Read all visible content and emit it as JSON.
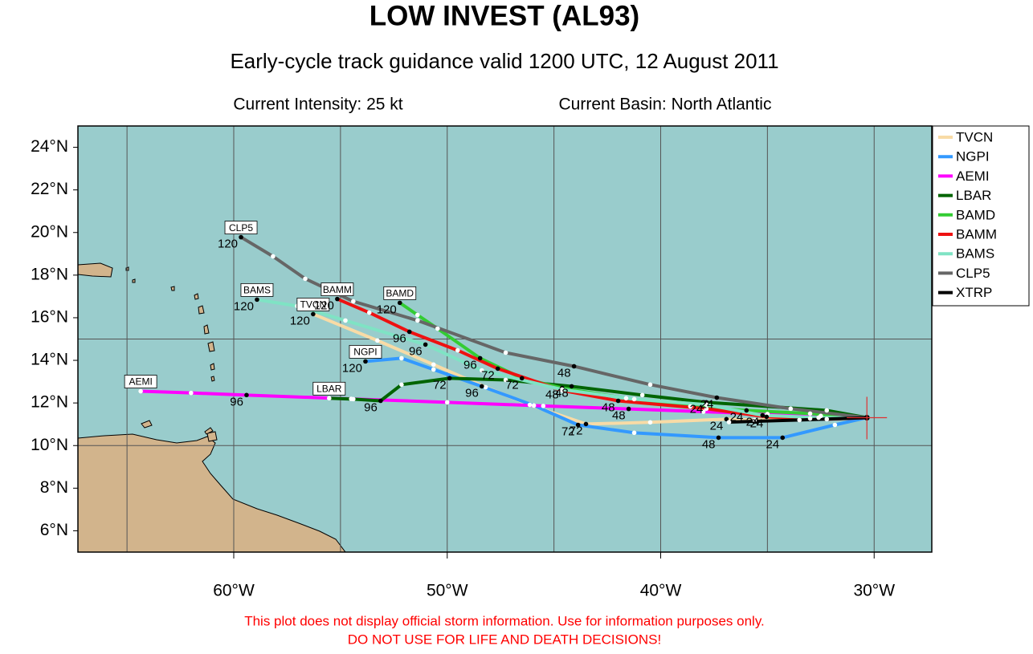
{
  "chart_data": {
    "type": "track",
    "title": "LOW INVEST (AL93)",
    "subtitle": "Early-cycle track guidance valid 1200 UTC, 12 August 2011",
    "annotations": [
      "Current Intensity: 25 kt",
      "Current Basin: North Atlantic"
    ],
    "disclaimer": [
      "This plot does not display official storm information. Use for information purposes only.",
      "DO NOT USE FOR LIFE AND DEATH DECISIONS!"
    ],
    "xlim": [
      -67.3,
      -27.3
    ],
    "ylim": [
      5,
      25
    ],
    "xticks": [
      {
        "value": -60,
        "label": "60°W"
      },
      {
        "value": -50,
        "label": "50°W"
      },
      {
        "value": -40,
        "label": "40°W"
      },
      {
        "value": -30,
        "label": "30°W"
      }
    ],
    "yticks": [
      {
        "value": 6,
        "label": "6°N"
      },
      {
        "value": 8,
        "label": "8°N"
      },
      {
        "value": 10,
        "label": "10°N"
      },
      {
        "value": 12,
        "label": "12°N"
      },
      {
        "value": 14,
        "label": "14°N"
      },
      {
        "value": 16,
        "label": "16°N"
      },
      {
        "value": 18,
        "label": "18°N"
      },
      {
        "value": 20,
        "label": "20°N"
      },
      {
        "value": 22,
        "label": "22°N"
      },
      {
        "value": 24,
        "label": "24°N"
      }
    ],
    "xgrid": [
      -65,
      -60,
      -55,
      -50,
      -45,
      -40,
      -35,
      -30
    ],
    "ygrid": [
      10,
      15
    ],
    "series": [
      {
        "name": "TVCN",
        "color": "#f8dba6",
        "x": [
          -30.34,
          -33.0,
          -35.6,
          -36.92,
          -40.49,
          -43.5,
          -46.13,
          -48.2,
          -50.64,
          -53.27,
          -56.28
        ],
        "values": [
          11.31,
          11.27,
          11.2,
          11.24,
          11.09,
          11.01,
          11.91,
          12.74,
          13.8,
          14.93,
          16.17
        ],
        "hour_labels": [
          null,
          null,
          null,
          "24",
          null,
          "72",
          null,
          null,
          null,
          null,
          "120"
        ]
      },
      {
        "name": "NGPI",
        "color": "#3399ff",
        "x": [
          -30.34,
          -31.84,
          -34.29,
          -37.29,
          -41.24,
          -43.87,
          -45.94,
          -48.38,
          -50.64,
          -52.14,
          -53.83
        ],
        "values": [
          11.31,
          10.97,
          10.37,
          10.37,
          10.6,
          10.97,
          11.88,
          12.78,
          13.57,
          14.1,
          13.95
        ],
        "hour_labels": [
          null,
          null,
          "24",
          "48",
          null,
          "72",
          null,
          "96",
          null,
          null,
          "120"
        ]
      },
      {
        "name": "AEMI",
        "color": "#ff00ff",
        "x": [
          -30.34,
          -32.5,
          -35.0,
          -38.0,
          -41.5,
          -45.5,
          -50.0,
          -54.5,
          -59.4,
          -62.0,
          -64.36
        ],
        "values": [
          11.31,
          11.39,
          11.48,
          11.59,
          11.72,
          11.86,
          12.03,
          12.19,
          12.37,
          12.47,
          12.55
        ],
        "hour_labels": [
          null,
          null,
          null,
          null,
          "48",
          null,
          null,
          null,
          "96",
          null,
          null
        ]
      },
      {
        "name": "LBAR",
        "color": "#006400",
        "x": [
          -30.34,
          -32.22,
          -37.86,
          -40.86,
          -44.17,
          -47.26,
          -49.89,
          -52.14,
          -53.12,
          -54.4,
          -55.53
        ],
        "values": [
          11.31,
          11.65,
          12.03,
          12.37,
          12.78,
          13.08,
          13.16,
          12.86,
          12.1,
          12.18,
          12.22
        ],
        "hour_labels": [
          null,
          null,
          "24",
          null,
          "48",
          null,
          "72",
          null,
          "96",
          null,
          null
        ]
      },
      {
        "name": "BAMD",
        "color": "#33cc33",
        "x": [
          -30.34,
          -33.0,
          -35.98,
          -38.61,
          -41.62,
          -44.62,
          -46.5,
          -48.46,
          -50.45,
          -51.39,
          -52.22
        ],
        "values": [
          11.31,
          11.5,
          11.65,
          11.84,
          12.22,
          12.7,
          13.16,
          14.1,
          15.49,
          16.13,
          16.7
        ],
        "hour_labels": [
          null,
          null,
          "24",
          null,
          null,
          "48",
          "72",
          "96",
          null,
          null,
          "120"
        ]
      },
      {
        "name": "BAMM",
        "color": "#ee1111",
        "x": [
          -30.34,
          -32.22,
          -35.04,
          -37.86,
          -41.99,
          -44.62,
          -47.63,
          -49.51,
          -51.77,
          -53.65,
          -55.15
        ],
        "values": [
          11.31,
          11.24,
          11.35,
          11.73,
          12.1,
          12.59,
          13.61,
          14.47,
          15.34,
          16.24,
          16.88
        ],
        "hour_labels": [
          null,
          null,
          "24",
          null,
          "48",
          null,
          "72",
          null,
          "96",
          null,
          "120"
        ]
      },
      {
        "name": "BAMS",
        "color": "#7fe3c4",
        "x": [
          -30.34,
          -32.6,
          -35.23,
          -37.86,
          -41.24,
          -44.62,
          -48.38,
          -51.02,
          -54.77,
          -57.03,
          -58.91
        ],
        "values": [
          11.31,
          11.31,
          11.42,
          11.92,
          12.18,
          12.63,
          13.53,
          14.74,
          15.87,
          16.55,
          16.85
        ],
        "hour_labels": [
          null,
          null,
          "24",
          null,
          null,
          null,
          null,
          "96",
          null,
          null,
          "120"
        ]
      },
      {
        "name": "CLP5",
        "color": "#666666",
        "x": [
          -30.34,
          -33.91,
          -37.37,
          -40.49,
          -44.06,
          -47.26,
          -51.39,
          -54.4,
          -56.65,
          -58.16,
          -59.66
        ],
        "values": [
          11.31,
          11.73,
          12.25,
          12.86,
          13.72,
          14.36,
          15.87,
          16.77,
          17.83,
          18.88,
          19.78
        ],
        "hour_labels": [
          null,
          null,
          "24",
          null,
          "48",
          null,
          null,
          null,
          null,
          null,
          "120"
        ]
      },
      {
        "name": "XTRP",
        "color": "#000000",
        "x": [
          -30.34,
          -33.5,
          -36.8
        ],
        "values": [
          11.31,
          11.2,
          11.1
        ],
        "hour_labels": [
          null,
          null,
          null
        ]
      }
    ]
  }
}
